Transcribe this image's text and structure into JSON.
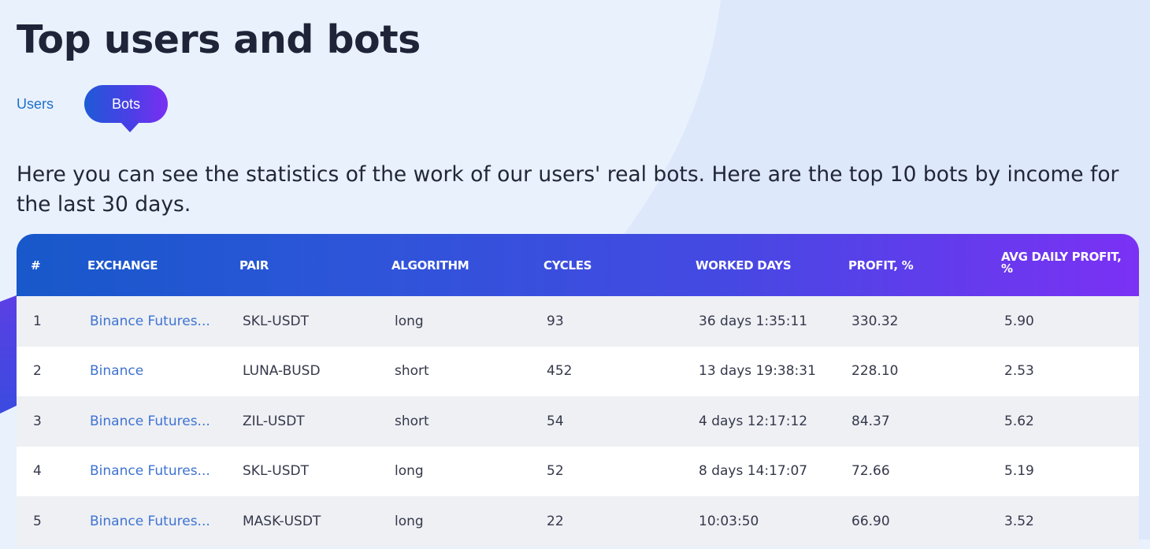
{
  "page": {
    "title": "Top users and bots",
    "intro": "Here you can see the statistics of the work of our users' real bots. Here are the top 10 bots by income for the last 30 days."
  },
  "tabs": [
    {
      "label": "Users",
      "active": false
    },
    {
      "label": "Bots",
      "active": true
    }
  ],
  "table": {
    "headers": {
      "rank": "#",
      "exchange": "EXCHANGE",
      "pair": "PAIR",
      "algorithm": "ALGORITHM",
      "cycles": "CYCLES",
      "worked_days": "WORKED DAYS",
      "profit": "PROFIT, %",
      "avg_daily_profit": "AVG DAILY PROFIT, %"
    },
    "rows": [
      {
        "rank": "1",
        "exchange": "Binance Futures...",
        "pair": "SKL-USDT",
        "algorithm": "long",
        "cycles": "93",
        "worked_days": "36 days 1:35:11",
        "profit": "330.32",
        "avg_daily_profit": "5.90"
      },
      {
        "rank": "2",
        "exchange": "Binance",
        "pair": "LUNA-BUSD",
        "algorithm": "short",
        "cycles": "452",
        "worked_days": "13 days 19:38:31",
        "profit": "228.10",
        "avg_daily_profit": "2.53"
      },
      {
        "rank": "3",
        "exchange": "Binance Futures...",
        "pair": "ZIL-USDT",
        "algorithm": "short",
        "cycles": "54",
        "worked_days": "4 days 12:17:12",
        "profit": "84.37",
        "avg_daily_profit": "5.62"
      },
      {
        "rank": "4",
        "exchange": "Binance Futures...",
        "pair": "SKL-USDT",
        "algorithm": "long",
        "cycles": "52",
        "worked_days": "8 days 14:17:07",
        "profit": "72.66",
        "avg_daily_profit": "5.19"
      },
      {
        "rank": "5",
        "exchange": "Binance Futures...",
        "pair": "MASK-USDT",
        "algorithm": "long",
        "cycles": "22",
        "worked_days": "10:03:50",
        "profit": "66.90",
        "avg_daily_profit": "3.52"
      }
    ]
  },
  "colors": {
    "background": "#e9f1fd",
    "accent_start": "#1758ca",
    "accent_end": "#7b31f4",
    "link": "#3f73d2",
    "title": "#1f2438"
  }
}
